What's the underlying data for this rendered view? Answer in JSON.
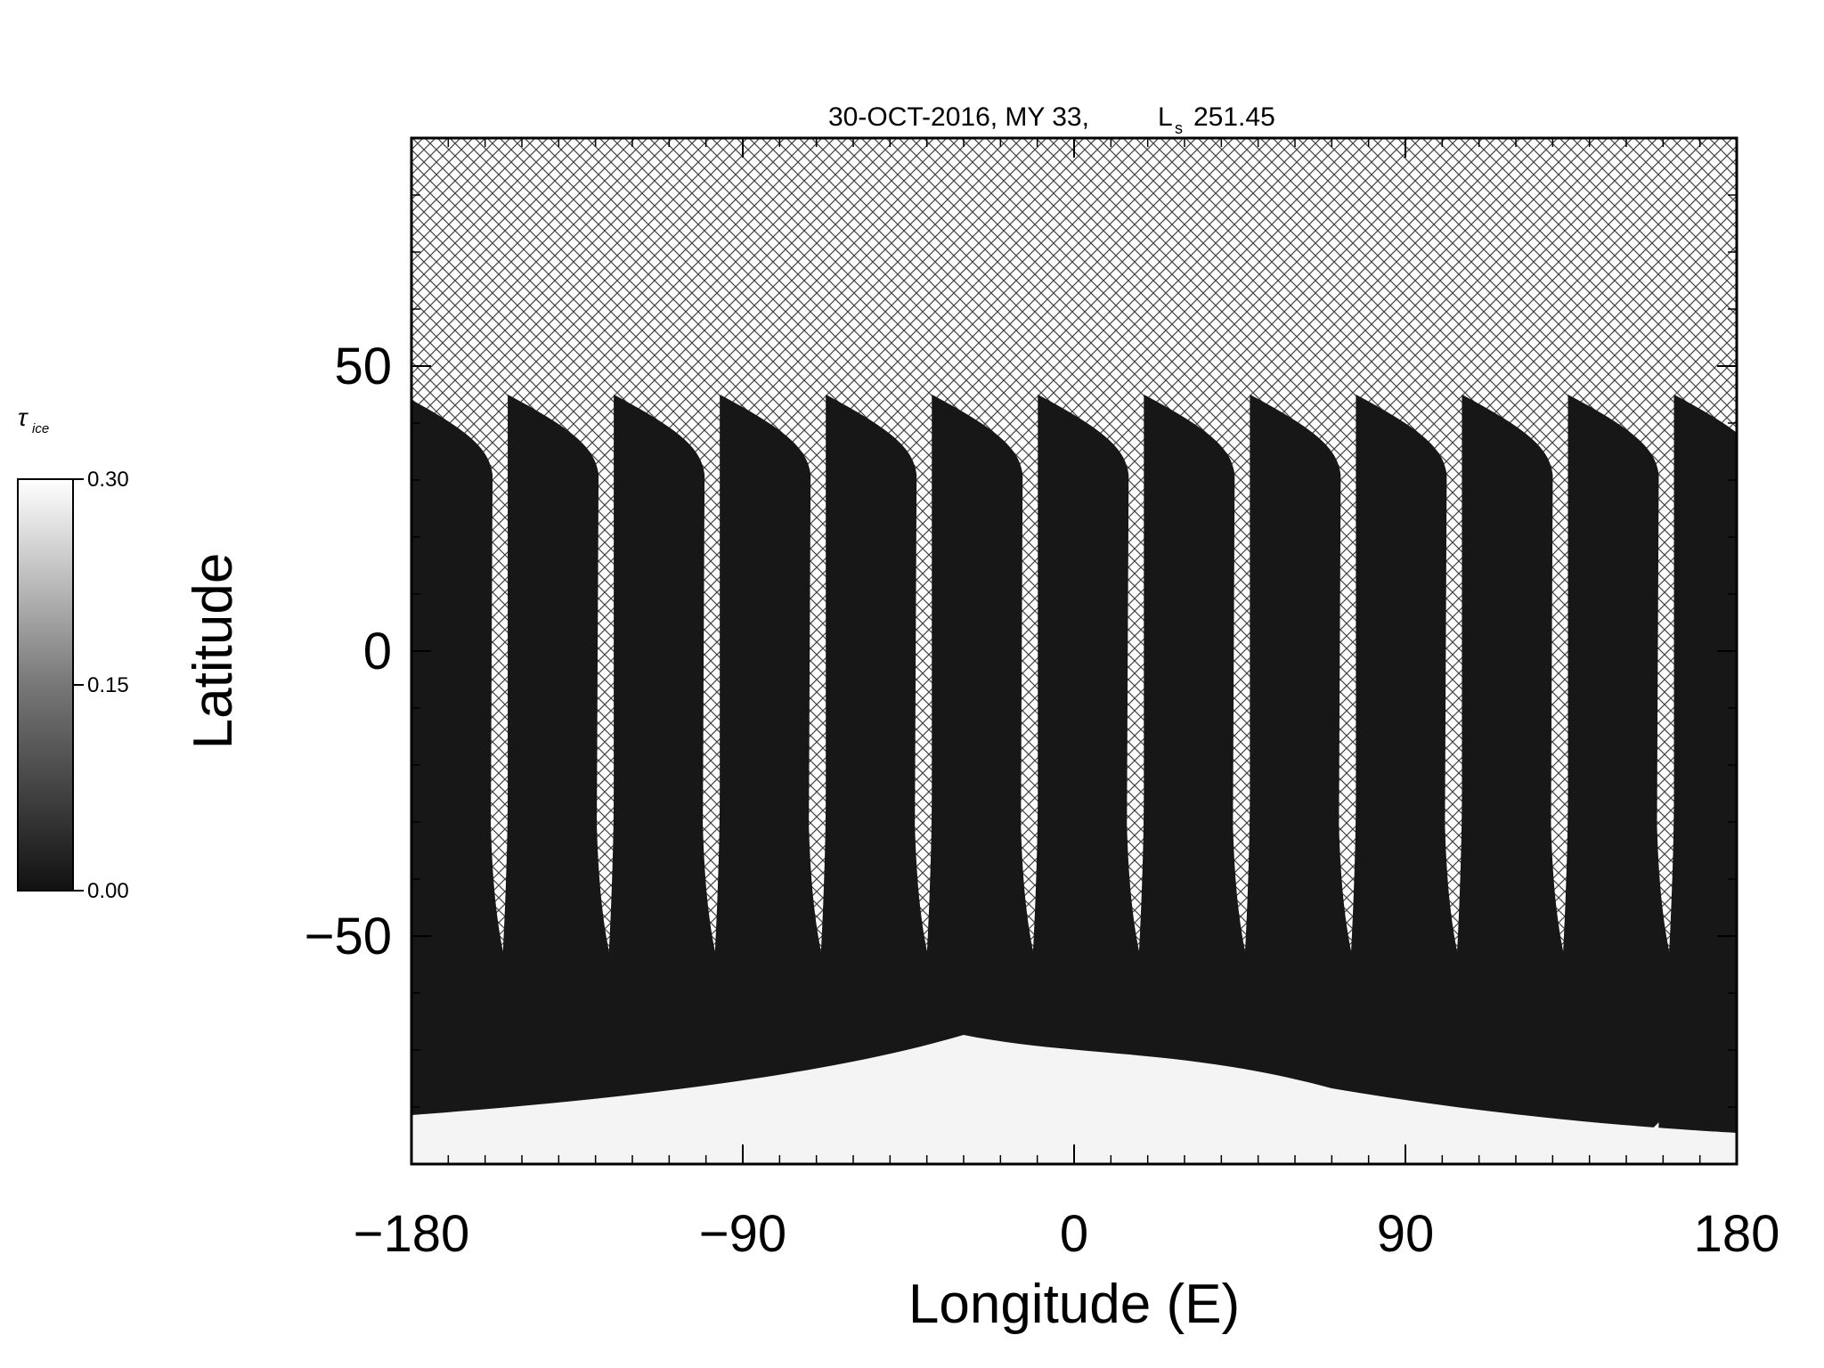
{
  "map": {
    "title_date": "30-OCT-2016, MY 33,",
    "title_ls_symbol": "L",
    "title_ls_sub": "s",
    "title_ls_value": "251.45",
    "x_axis_title": "Longitude (E)",
    "y_axis_title": "Latitude",
    "x_range": [
      -180,
      180
    ],
    "y_range": [
      -90,
      90
    ],
    "x_ticks": [
      {
        "value": -180,
        "label": "−180"
      },
      {
        "value": -90,
        "label": "−90"
      },
      {
        "value": 0,
        "label": "0"
      },
      {
        "value": 90,
        "label": "90"
      },
      {
        "value": 180,
        "label": "180"
      }
    ],
    "y_ticks": [
      {
        "value": -50,
        "label": "−50"
      },
      {
        "value": 0,
        "label": "0"
      },
      {
        "value": 50,
        "label": "50"
      }
    ],
    "swath_count": 13,
    "swath_north_edge_lat": 45,
    "no_data_fill": "crosshatch",
    "colorbar": {
      "title_symbol": "τ",
      "title_sub": "ice",
      "min": 0.0,
      "max": 0.3,
      "ticks": [
        {
          "value": 0.3,
          "label": "0.30"
        },
        {
          "value": 0.15,
          "label": "0.15"
        },
        {
          "value": 0.0,
          "label": "0.00"
        }
      ],
      "colormap": "grayscale",
      "color_low": "#111111",
      "color_high": "#ffffff"
    }
  }
}
